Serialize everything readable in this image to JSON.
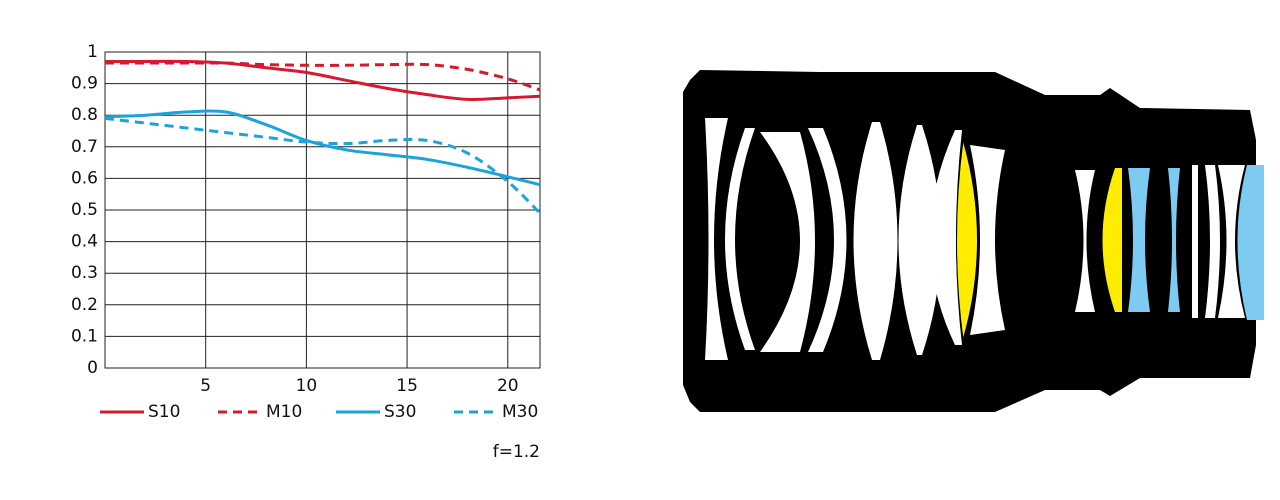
{
  "chart_data": {
    "type": "line",
    "x": [
      0,
      2,
      4,
      6,
      8,
      10,
      12,
      14,
      16,
      18,
      20,
      21.6
    ],
    "series": [
      {
        "name": "S10",
        "color": "#d7192d",
        "dash": false,
        "values": [
          0.97,
          0.97,
          0.97,
          0.965,
          0.95,
          0.935,
          0.91,
          0.885,
          0.865,
          0.85,
          0.855,
          0.86
        ]
      },
      {
        "name": "M10",
        "color": "#d7192d",
        "dash": true,
        "values": [
          0.965,
          0.965,
          0.965,
          0.965,
          0.96,
          0.958,
          0.958,
          0.96,
          0.96,
          0.945,
          0.915,
          0.88
        ]
      },
      {
        "name": "S30",
        "color": "#1ba3dc",
        "dash": false,
        "values": [
          0.795,
          0.8,
          0.81,
          0.81,
          0.77,
          0.72,
          0.69,
          0.675,
          0.66,
          0.635,
          0.605,
          0.58
        ]
      },
      {
        "name": "M30",
        "color": "#1ba3dc",
        "dash": true,
        "values": [
          0.79,
          0.775,
          0.76,
          0.745,
          0.73,
          0.715,
          0.71,
          0.72,
          0.72,
          0.68,
          0.59,
          0.49
        ]
      }
    ],
    "xlim": [
      0,
      21.6
    ],
    "xticks": [
      5,
      10,
      15,
      20
    ],
    "ylim": [
      0,
      1
    ],
    "yticks": [
      0,
      0.1,
      0.2,
      0.3,
      0.4,
      0.5,
      0.6,
      0.7,
      0.8,
      0.9,
      1
    ],
    "grid": true,
    "annotation": "f=1.2"
  }
}
